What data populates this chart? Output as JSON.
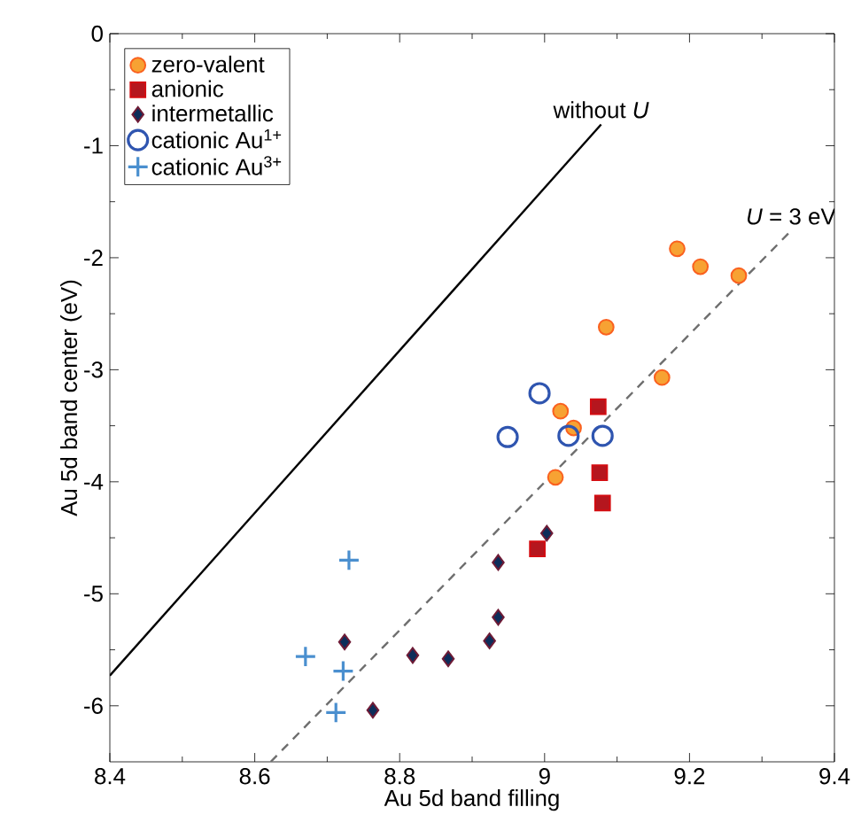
{
  "chart_data": {
    "type": "scatter",
    "xlabel": "Au 5d band filling",
    "ylabel": "Au 5d band center (eV)",
    "xlim": [
      8.4,
      9.4
    ],
    "ylim": [
      -6.5,
      0
    ],
    "xticks": [
      8.4,
      8.6,
      8.8,
      9,
      9.2,
      9.4
    ],
    "yticks": [
      -6,
      -5,
      -4,
      -3,
      -2,
      -1,
      0
    ],
    "legend": "top left",
    "grid": false,
    "series": [
      {
        "name": "zero-valent",
        "marker": "circle",
        "color": "#f7a233",
        "x": [
          9.183,
          9.215,
          9.268,
          9.085,
          9.162,
          9.022,
          9.04,
          9.015
        ],
        "values": [
          -1.92,
          -2.08,
          -2.16,
          -2.62,
          -3.07,
          -3.37,
          -3.52,
          -3.96
        ]
      },
      {
        "name": "anionic",
        "marker": "square",
        "color": "#b5161e",
        "x": [
          9.074,
          9.076,
          9.08,
          8.99
        ],
        "values": [
          -3.33,
          -3.92,
          -4.19,
          -4.6
        ]
      },
      {
        "name": "intermetallic",
        "marker": "diamond",
        "color": "#0d2d5a",
        "x": [
          9.003,
          8.936,
          8.936,
          8.924,
          8.867,
          8.818,
          8.724,
          8.763
        ],
        "values": [
          -4.46,
          -4.72,
          -5.21,
          -5.42,
          -5.58,
          -5.55,
          -5.43,
          -6.04
        ]
      },
      {
        "name": "cationic Au$^{1+}$",
        "marker": "open circle",
        "color": "#2f55b0",
        "x": [
          8.993,
          8.949,
          9.033,
          9.08
        ],
        "values": [
          -3.21,
          -3.6,
          -3.59,
          -3.59
        ]
      },
      {
        "name": "cationic Au$^{3+}$",
        "marker": "cross",
        "color": "#4a8fcf",
        "x": [
          8.73,
          8.67,
          8.722,
          8.712
        ],
        "values": [
          -4.7,
          -5.56,
          -5.69,
          -6.06
        ]
      },
      {
        "type": "line",
        "line_style": "solid",
        "color": "#000000",
        "x": [
          8.4,
          9.078
        ],
        "values": [
          -5.73,
          -0.81
        ]
      },
      {
        "type": "line",
        "line_style": "dashed",
        "color": "#6e6e6e",
        "x": [
          8.622,
          9.34
        ],
        "values": [
          -6.5,
          -1.76
        ]
      }
    ],
    "annotations": [
      "without *U*",
      "*U* = 3 eV"
    ]
  }
}
